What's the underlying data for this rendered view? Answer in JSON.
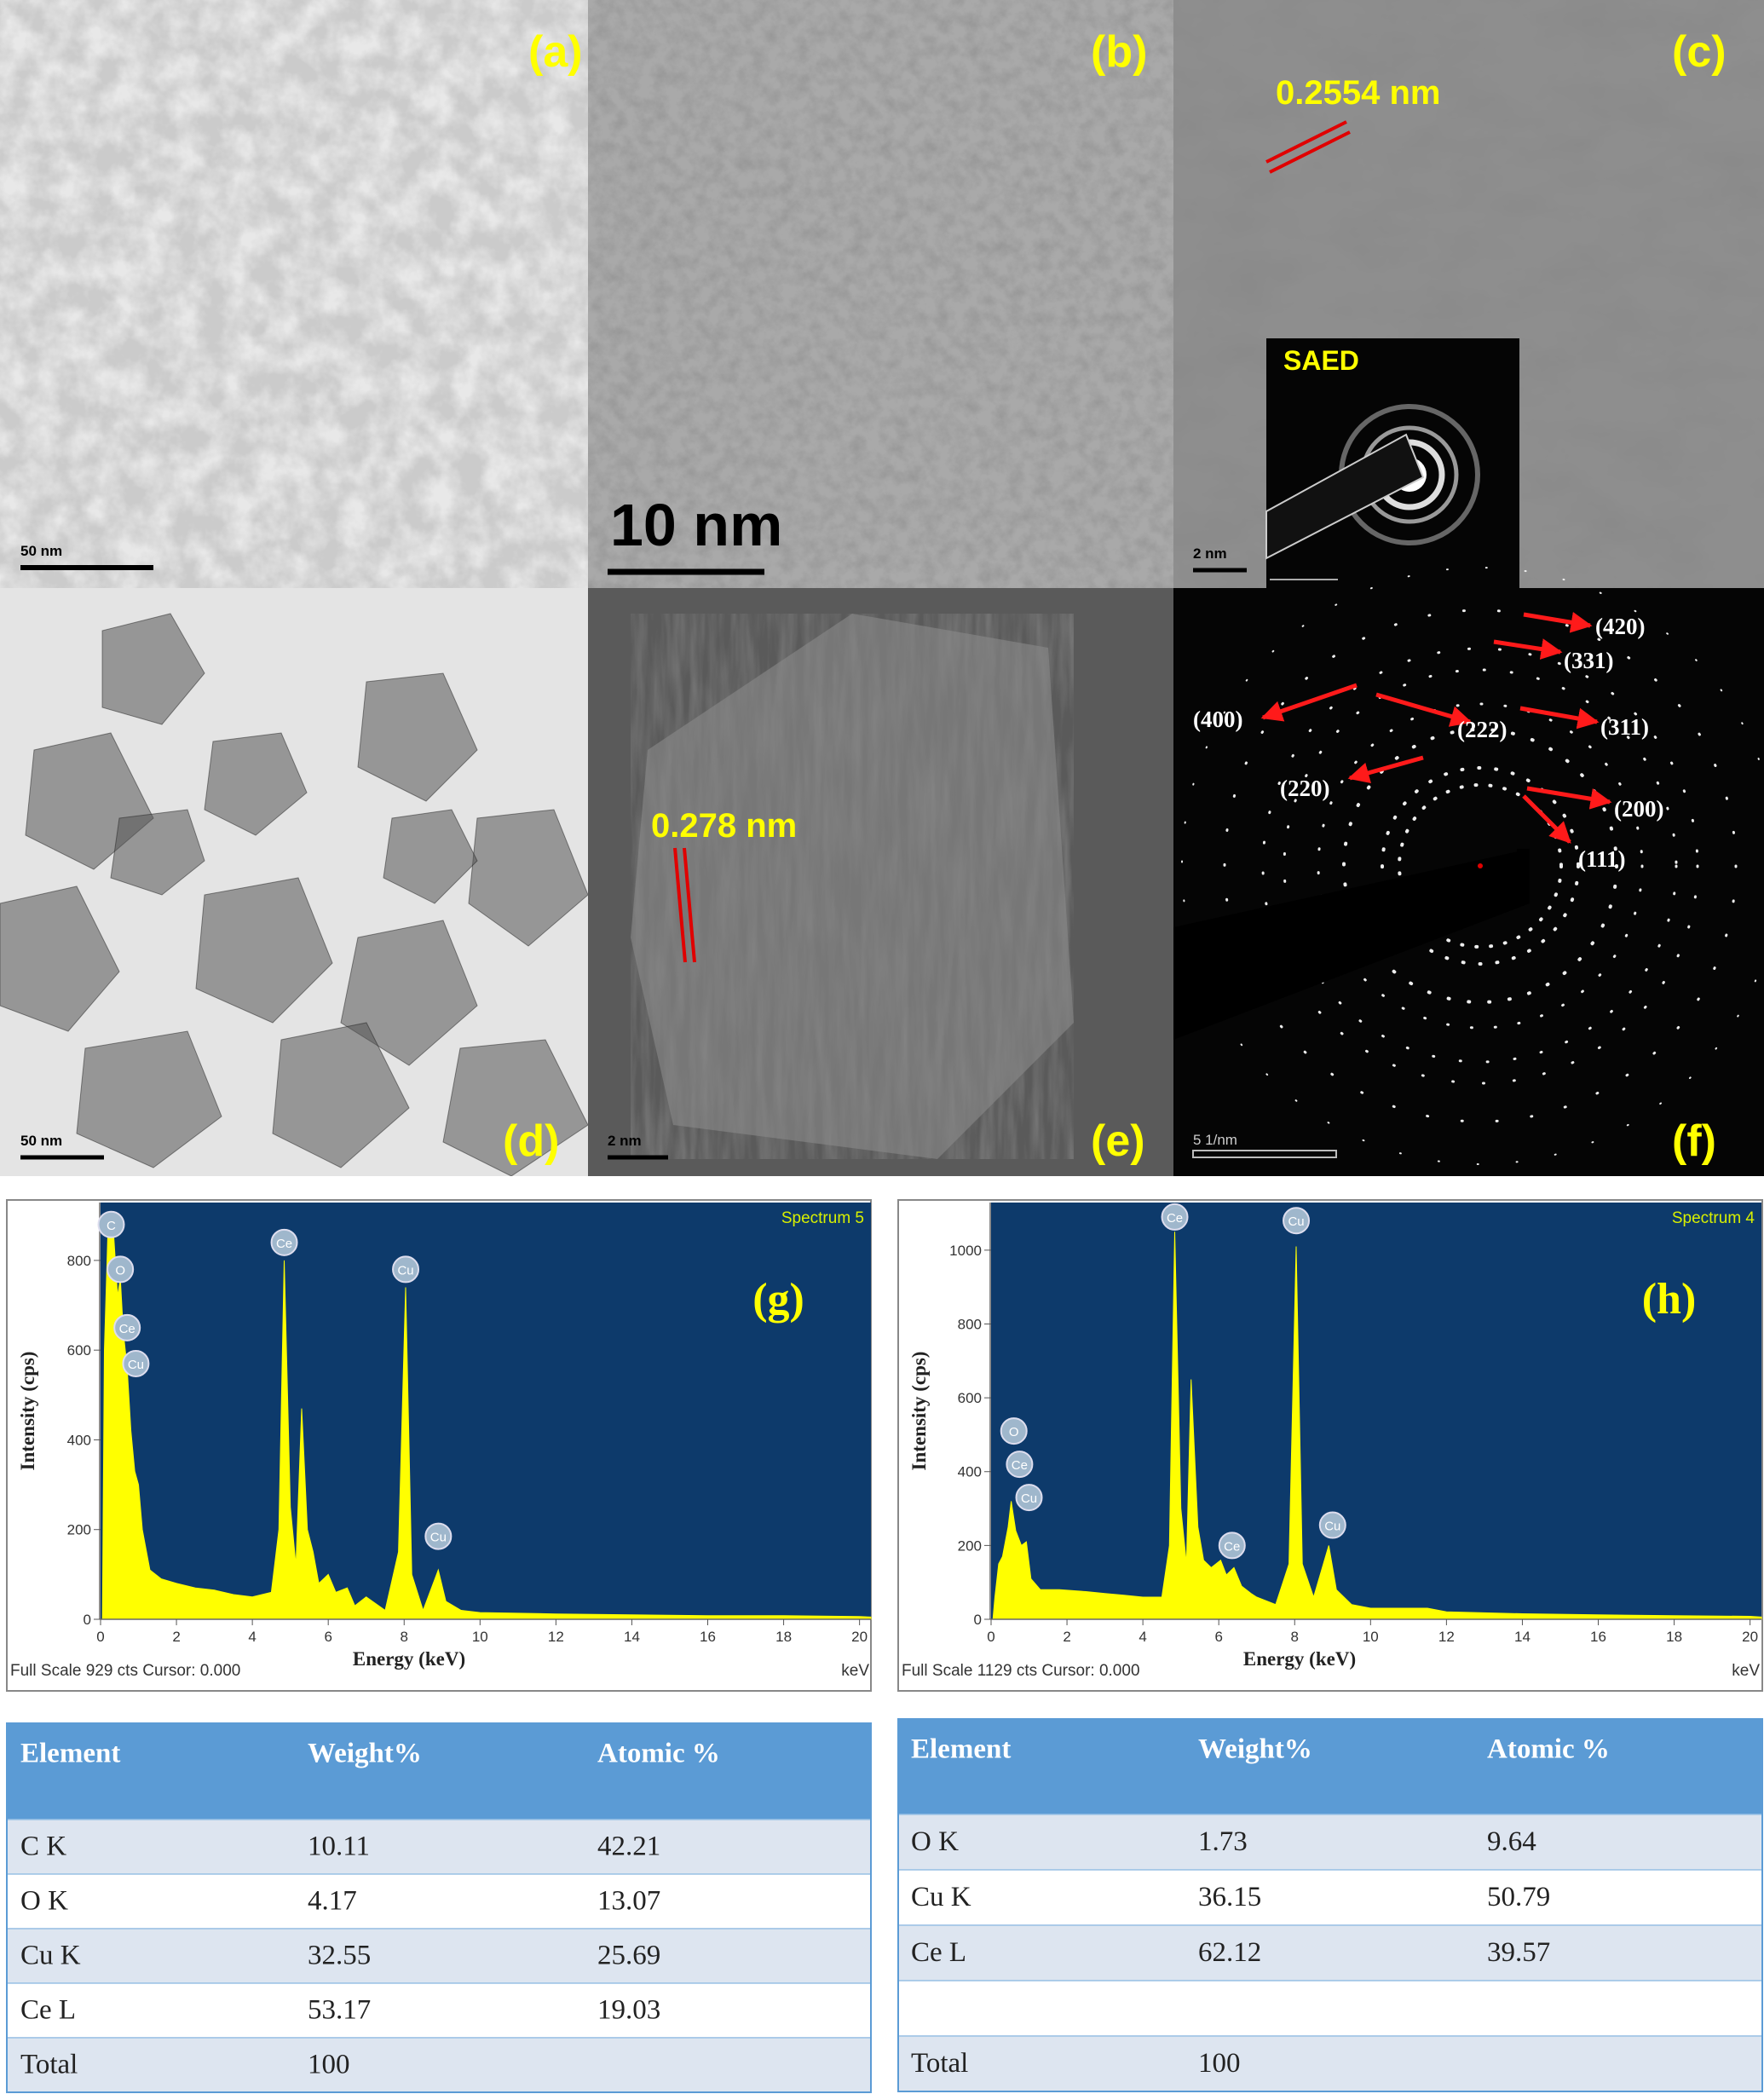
{
  "panels": [
    {
      "label": "(a)",
      "scale_bar": "50 nm"
    },
    {
      "label": "(b)",
      "scale_bar": "10 nm"
    },
    {
      "label": "(c)",
      "scale_bar": "2 nm",
      "d_spacing": "0.2554 nm",
      "inset_label": "SAED"
    },
    {
      "label": "(d)",
      "scale_bar": "50 nm"
    },
    {
      "label": "(e)",
      "scale_bar": "2 nm",
      "d_spacing": "0.278 nm"
    },
    {
      "label": "(f)",
      "scale_bar": "5 1/nm",
      "rings": [
        "(420)",
        "(331)",
        "(400)",
        "(222)",
        "(311)",
        "(220)",
        "(200)",
        "(111)"
      ]
    }
  ],
  "chart_data": [
    {
      "type": "area",
      "title": "Spectrum 5",
      "panel_label": "(g)",
      "x_label": "Energy (keV)",
      "y_label": "Intensity (cps)",
      "footer": "Full Scale 929 cts Cursor: 0.000",
      "x_unit": "keV",
      "color": "#ffff00",
      "background": "#0d3a6b",
      "xlim": [
        0,
        20.3
      ],
      "ylim": [
        0,
        929
      ],
      "xticks": [
        0,
        2,
        4,
        6,
        8,
        10,
        12,
        14,
        16,
        18,
        20
      ],
      "yticks": [
        0,
        200,
        400,
        600,
        800
      ],
      "x": [
        0,
        0.05,
        0.1,
        0.2,
        0.28,
        0.35,
        0.45,
        0.52,
        0.6,
        0.7,
        0.8,
        0.9,
        1.0,
        1.1,
        1.3,
        1.6,
        2,
        2.5,
        3,
        3.5,
        4,
        4.5,
        4.7,
        4.84,
        5.0,
        5.15,
        5.3,
        5.45,
        5.6,
        5.75,
        6.0,
        6.2,
        6.5,
        6.7,
        7.0,
        7.5,
        7.85,
        8.04,
        8.2,
        8.5,
        8.9,
        9.1,
        9.5,
        10,
        12,
        14,
        16,
        18,
        20,
        20.3
      ],
      "values": [
        0,
        0,
        600,
        880,
        900,
        850,
        720,
        760,
        640,
        560,
        420,
        330,
        300,
        200,
        110,
        90,
        80,
        70,
        65,
        55,
        50,
        60,
        200,
        800,
        250,
        120,
        470,
        200,
        150,
        80,
        100,
        60,
        70,
        30,
        50,
        20,
        150,
        740,
        100,
        20,
        110,
        40,
        20,
        15,
        12,
        10,
        8,
        8,
        6,
        5
      ],
      "peaks": [
        {
          "label": "C",
          "x": 0.28,
          "y": 880
        },
        {
          "label": "O",
          "x": 0.52,
          "y": 780
        },
        {
          "label": "Ce",
          "x": 0.7,
          "y": 650
        },
        {
          "label": "Cu",
          "x": 0.93,
          "y": 570
        },
        {
          "label": "Ce",
          "x": 4.84,
          "y": 840
        },
        {
          "label": "Cu",
          "x": 8.04,
          "y": 780
        },
        {
          "label": "Cu",
          "x": 8.9,
          "y": 185
        }
      ]
    },
    {
      "type": "area",
      "title": "Spectrum 4",
      "panel_label": "(h)",
      "x_label": "Energy (keV)",
      "y_label": "Intensity (cps)",
      "footer": "Full Scale 1129 cts Cursor: 0.000",
      "x_unit": "keV",
      "color": "#ffff00",
      "background": "#0d3a6b",
      "xlim": [
        0,
        20.3
      ],
      "ylim": [
        0,
        1129
      ],
      "xticks": [
        0,
        2,
        4,
        6,
        8,
        10,
        12,
        14,
        16,
        18,
        20
      ],
      "yticks": [
        0,
        200,
        400,
        600,
        800,
        1000
      ],
      "x": [
        0,
        0.05,
        0.1,
        0.2,
        0.3,
        0.45,
        0.53,
        0.65,
        0.8,
        0.93,
        1.05,
        1.3,
        1.8,
        2.5,
        3,
        3.5,
        4,
        4.5,
        4.7,
        4.84,
        5.0,
        5.15,
        5.27,
        5.45,
        5.6,
        5.8,
        6.05,
        6.2,
        6.4,
        6.6,
        6.85,
        7.0,
        7.5,
        7.85,
        8.04,
        8.2,
        8.5,
        8.9,
        9.1,
        9.5,
        10,
        11.5,
        12,
        14,
        16,
        18,
        20,
        20.3
      ],
      "values": [
        0,
        0,
        60,
        150,
        170,
        250,
        320,
        240,
        200,
        210,
        110,
        80,
        80,
        75,
        70,
        65,
        60,
        60,
        200,
        1050,
        300,
        150,
        650,
        250,
        160,
        140,
        160,
        120,
        140,
        90,
        70,
        60,
        40,
        150,
        1010,
        150,
        60,
        200,
        80,
        40,
        30,
        30,
        20,
        15,
        12,
        10,
        8,
        6
      ],
      "peaks": [
        {
          "label": "O",
          "x": 0.6,
          "y": 510
        },
        {
          "label": "Ce",
          "x": 0.75,
          "y": 420
        },
        {
          "label": "Cu",
          "x": 1.0,
          "y": 330
        },
        {
          "label": "Ce",
          "x": 4.84,
          "y": 1090
        },
        {
          "label": "Cu",
          "x": 8.04,
          "y": 1080
        },
        {
          "label": "Ce",
          "x": 6.35,
          "y": 200
        },
        {
          "label": "Cu",
          "x": 9.0,
          "y": 255
        }
      ]
    }
  ],
  "tables": [
    {
      "header": [
        "Element",
        "Weight%",
        "Atomic %"
      ],
      "rows": [
        [
          "C K",
          "10.11",
          "42.21"
        ],
        [
          "O K",
          "4.17",
          "13.07"
        ],
        [
          "Cu K",
          "32.55",
          "25.69"
        ],
        [
          "Ce L",
          "53.17",
          "19.03"
        ],
        [
          "Total",
          "100"
        ]
      ]
    },
    {
      "header": [
        "Element",
        "Weight%",
        "Atomic %"
      ],
      "rows": [
        [
          "O K",
          "1.73",
          "9.64"
        ],
        [
          "Cu K",
          "36.15",
          "50.79"
        ],
        [
          "Ce L",
          "62.12",
          "39.57"
        ],
        null,
        [
          "Total",
          "100"
        ]
      ]
    }
  ]
}
